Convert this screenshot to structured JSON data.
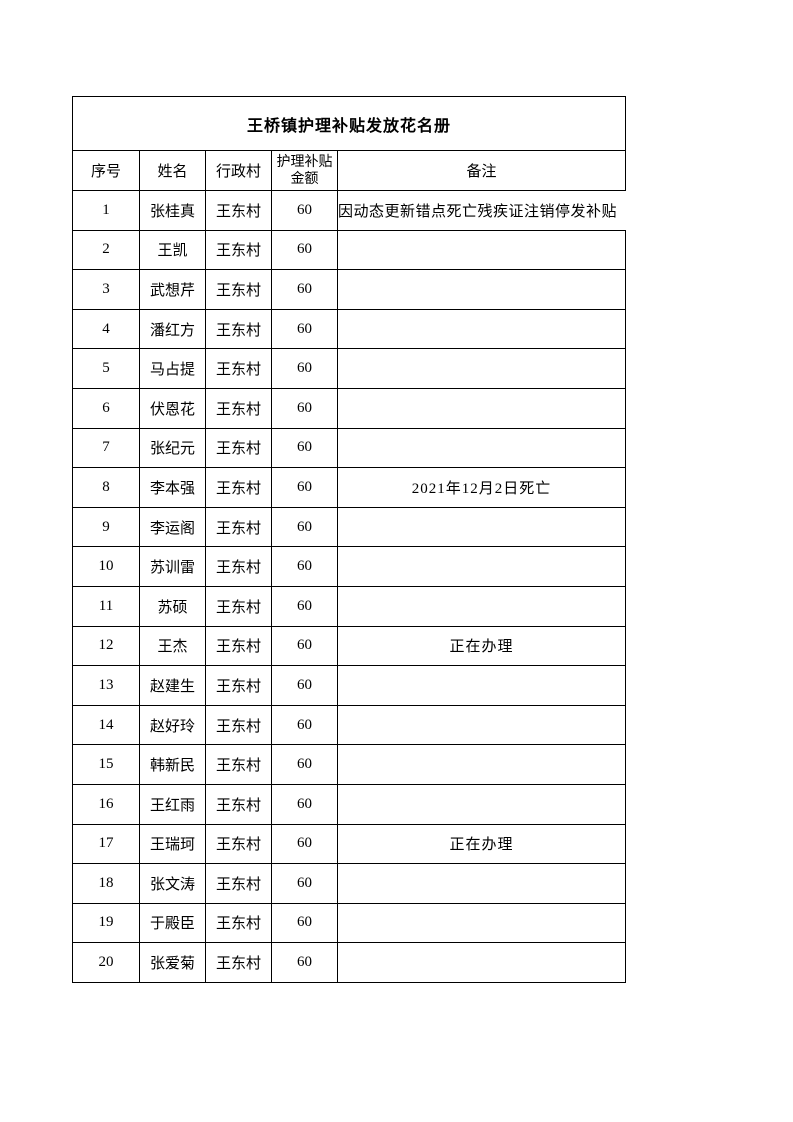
{
  "title": "王桥镇护理补贴发放花名册",
  "headers": [
    "序号",
    "姓名",
    "行政村",
    "护理补贴金额",
    "备注"
  ],
  "rows": [
    {
      "no": "1",
      "name": "张桂真",
      "village": "王东村",
      "amount": "60",
      "remark": "因动态更新错点死亡残疾证注销停发补贴"
    },
    {
      "no": "2",
      "name": "王凯",
      "village": "王东村",
      "amount": "60",
      "remark": ""
    },
    {
      "no": "3",
      "name": "武想芹",
      "village": "王东村",
      "amount": "60",
      "remark": ""
    },
    {
      "no": "4",
      "name": "潘红方",
      "village": "王东村",
      "amount": "60",
      "remark": ""
    },
    {
      "no": "5",
      "name": "马占提",
      "village": "王东村",
      "amount": "60",
      "remark": ""
    },
    {
      "no": "6",
      "name": "伏恩花",
      "village": "王东村",
      "amount": "60",
      "remark": ""
    },
    {
      "no": "7",
      "name": "张纪元",
      "village": "王东村",
      "amount": "60",
      "remark": ""
    },
    {
      "no": "8",
      "name": "李本强",
      "village": "王东村",
      "amount": "60",
      "remark": "2021年12月2日死亡"
    },
    {
      "no": "9",
      "name": "李运阁",
      "village": "王东村",
      "amount": "60",
      "remark": ""
    },
    {
      "no": "10",
      "name": "苏训雷",
      "village": "王东村",
      "amount": "60",
      "remark": ""
    },
    {
      "no": "11",
      "name": "苏硕",
      "village": "王东村",
      "amount": "60",
      "remark": ""
    },
    {
      "no": "12",
      "name": "王杰",
      "village": "王东村",
      "amount": "60",
      "remark": "正在办理"
    },
    {
      "no": "13",
      "name": "赵建生",
      "village": "王东村",
      "amount": "60",
      "remark": ""
    },
    {
      "no": "14",
      "name": "赵好玲",
      "village": "王东村",
      "amount": "60",
      "remark": ""
    },
    {
      "no": "15",
      "name": "韩新民",
      "village": "王东村",
      "amount": "60",
      "remark": ""
    },
    {
      "no": "16",
      "name": "王红雨",
      "village": "王东村",
      "amount": "60",
      "remark": ""
    },
    {
      "no": "17",
      "name": "王瑞珂",
      "village": "王东村",
      "amount": "60",
      "remark": "正在办理"
    },
    {
      "no": "18",
      "name": "张文涛",
      "village": "王东村",
      "amount": "60",
      "remark": ""
    },
    {
      "no": "19",
      "name": "于殿臣",
      "village": "王东村",
      "amount": "60",
      "remark": ""
    },
    {
      "no": "20",
      "name": "张爱菊",
      "village": "王东村",
      "amount": "60",
      "remark": ""
    }
  ]
}
